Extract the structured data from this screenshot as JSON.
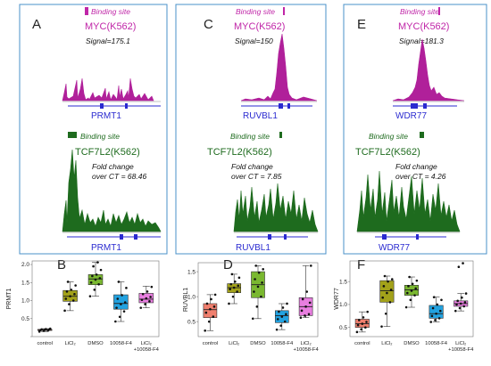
{
  "colors": {
    "frame": "#4a90c8",
    "myc": "#c026a8",
    "tcf": "#1e6b1e",
    "gene": "#2a2ad0",
    "box_control": "#f07f6e",
    "box_licl": "#a3a21a",
    "box_dmso": "#7ab830",
    "box_10058": "#22a2e0",
    "box_combo": "#e87ee0"
  },
  "tracks": [
    {
      "panel": "A",
      "myc": {
        "binding": "Binding site",
        "name": "MYC(K562)",
        "stat": "Signal=175.1"
      },
      "tcf": {
        "binding": "Binding site",
        "name": "TCF7L2(K562)",
        "fold1": "Fold change",
        "fold2": "over CT = 68.46"
      },
      "gene1": "PRMT1",
      "gene2": "PRMT1"
    },
    {
      "panel": "C",
      "myc": {
        "binding": "Binding site",
        "name": "MYC(K562)",
        "stat": "Signal=150"
      },
      "tcf": {
        "binding": "Binding site",
        "name": "TCF7L2(K562)",
        "fold1": "Fold change",
        "fold2": "over CT = 7.85"
      },
      "gene1": "RUVBL1",
      "gene2": "RUVBL1"
    },
    {
      "panel": "E",
      "myc": {
        "binding": "Binding site",
        "name": "MYC(K562)",
        "stat": "Signal=181.3"
      },
      "tcf": {
        "binding": "Binding site",
        "name": "TCF7L2(K562)",
        "fold1": "Fold change",
        "fold2": "over CT = 4.26"
      },
      "gene1": "WDR77",
      "gene2": "WDR77"
    }
  ],
  "chart_data": [
    {
      "panel": "B",
      "type": "box",
      "ylabel": "PRMT1",
      "categories": [
        "control",
        "LiCl₂",
        "DMSO",
        "10058-F4",
        "LiCl₂ +10058-F4"
      ],
      "ylim": [
        0,
        2.1
      ],
      "yticks": [
        0,
        0.5,
        1,
        1.5,
        2
      ],
      "ytick_labels": [
        "",
        "0.5",
        "1.0",
        "1.5",
        "2.0"
      ],
      "boxes": [
        {
          "min": 0.14,
          "q1": 0.17,
          "median": 0.19,
          "q3": 0.2,
          "max": 0.22
        },
        {
          "min": 0.72,
          "q1": 0.98,
          "median": 1.12,
          "q3": 1.28,
          "max": 1.52
        },
        {
          "min": 1.12,
          "q1": 1.44,
          "median": 1.6,
          "q3": 1.72,
          "max": 2.06
        },
        {
          "min": 0.42,
          "q1": 0.76,
          "median": 0.92,
          "q3": 1.16,
          "max": 1.52
        },
        {
          "min": 0.8,
          "q1": 0.94,
          "median": 1.04,
          "q3": 1.2,
          "max": 1.4
        }
      ],
      "points": [
        [
          0.14,
          0.16,
          0.17,
          0.18,
          0.19,
          0.2,
          0.2,
          0.21,
          0.22
        ],
        [
          0.72,
          0.9,
          1.0,
          1.05,
          1.12,
          1.18,
          1.25,
          1.3,
          1.42,
          1.52
        ],
        [
          1.12,
          1.3,
          1.45,
          1.5,
          1.58,
          1.62,
          1.68,
          1.72,
          1.85,
          1.95,
          2.06
        ],
        [
          0.42,
          0.55,
          0.7,
          0.8,
          0.9,
          0.95,
          1.05,
          1.15,
          1.35,
          1.52
        ],
        [
          0.8,
          0.9,
          0.98,
          1.02,
          1.06,
          1.1,
          1.18,
          1.25,
          1.38
        ]
      ]
    },
    {
      "panel": "D",
      "type": "box",
      "ylabel": "RUVBL1",
      "categories": [
        "control",
        "LiCl₂",
        "DMSO",
        "10058-F4",
        "LiCl₂ +10058-F4"
      ],
      "ylim": [
        0.2,
        1.68
      ],
      "yticks": [
        0.5,
        1.0,
        1.5
      ],
      "ytick_labels": [
        "0.5",
        "1.0",
        "1.5"
      ],
      "boxes": [
        {
          "min": 0.32,
          "q1": 0.58,
          "median": 0.74,
          "q3": 0.86,
          "max": 1.04
        },
        {
          "min": 0.86,
          "q1": 1.08,
          "median": 1.18,
          "q3": 1.26,
          "max": 1.45
        },
        {
          "min": 0.56,
          "q1": 0.98,
          "median": 1.24,
          "q3": 1.5,
          "max": 1.62
        },
        {
          "min": 0.34,
          "q1": 0.48,
          "median": 0.62,
          "q3": 0.72,
          "max": 0.86
        },
        {
          "min": 0.58,
          "q1": 0.62,
          "median": 0.8,
          "q3": 0.98,
          "max": 1.62
        }
      ],
      "points": [
        [
          0.32,
          0.5,
          0.6,
          0.68,
          0.75,
          0.8,
          0.86,
          0.95,
          1.04
        ],
        [
          0.86,
          1.0,
          1.1,
          1.15,
          1.18,
          1.22,
          1.25,
          1.3,
          1.38,
          1.45
        ],
        [
          0.56,
          0.8,
          1.0,
          1.1,
          1.2,
          1.28,
          1.35,
          1.48,
          1.55,
          1.62
        ],
        [
          0.34,
          0.42,
          0.5,
          0.55,
          0.6,
          0.65,
          0.7,
          0.78,
          0.86
        ],
        [
          0.58,
          0.62,
          0.65,
          0.72,
          0.8,
          0.88,
          0.95,
          1.1,
          1.62
        ]
      ]
    },
    {
      "panel": "F",
      "type": "box",
      "ylabel": "WDR77",
      "categories": [
        "control",
        "LiCl₂",
        "DMSO",
        "10058-F4",
        "LiCl₂ +10058-F4"
      ],
      "ylim": [
        0.3,
        1.95
      ],
      "yticks": [
        0.5,
        1.0,
        1.5
      ],
      "ytick_labels": [
        "0.5",
        "1.0",
        "1.5"
      ],
      "boxes": [
        {
          "min": 0.4,
          "q1": 0.5,
          "median": 0.58,
          "q3": 0.68,
          "max": 0.84
        },
        {
          "min": 0.52,
          "q1": 1.05,
          "median": 1.3,
          "q3": 1.52,
          "max": 1.62
        },
        {
          "min": 0.94,
          "q1": 1.2,
          "median": 1.32,
          "q3": 1.42,
          "max": 1.6
        },
        {
          "min": 0.62,
          "q1": 0.7,
          "median": 0.8,
          "q3": 0.98,
          "max": 1.16
        },
        {
          "min": 0.86,
          "q1": 0.96,
          "median": 1.02,
          "q3": 1.08,
          "max": 1.24
        }
      ],
      "points": [
        [
          0.4,
          0.46,
          0.5,
          0.55,
          0.58,
          0.62,
          0.66,
          0.72,
          0.84
        ],
        [
          0.52,
          0.8,
          1.05,
          1.15,
          1.25,
          1.32,
          1.4,
          1.5,
          1.55,
          1.62
        ],
        [
          0.94,
          1.1,
          1.2,
          1.25,
          1.3,
          1.35,
          1.4,
          1.45,
          1.52,
          1.6
        ],
        [
          0.62,
          0.66,
          0.7,
          0.75,
          0.8,
          0.86,
          0.92,
          1.0,
          1.1,
          1.16
        ],
        [
          0.86,
          0.92,
          0.96,
          1.0,
          1.02,
          1.05,
          1.08,
          1.15,
          1.24,
          1.82,
          1.9
        ]
      ]
    }
  ]
}
